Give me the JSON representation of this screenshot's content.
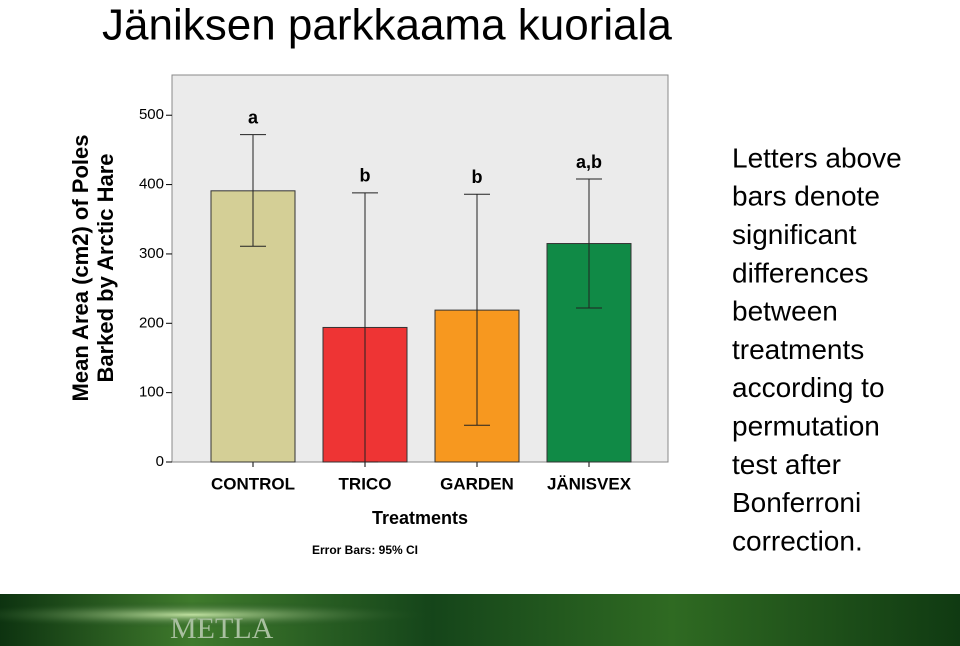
{
  "title": "Jäniksen parkkaama kuoriala",
  "chart_data": {
    "type": "bar",
    "y_label": [
      "Mean Area (cm2) of Poles",
      "Barked by Arctic Hare"
    ],
    "x_label": "Treatments",
    "footnote": "Error Bars: 95% CI",
    "categories": [
      "CONTROL",
      "TRICO",
      "GARDEN",
      "JÄNISVEX"
    ],
    "values": [
      391,
      194,
      219,
      315
    ],
    "error_low": [
      311,
      0,
      53,
      222
    ],
    "error_high": [
      472,
      388,
      386,
      408
    ],
    "annotations": [
      "a",
      "b",
      "b",
      "a,b"
    ],
    "colors": [
      "#d4cf96",
      "#ee3434",
      "#f7981f",
      "#108a46"
    ],
    "ylim": [
      0,
      558
    ],
    "yticks": [
      0,
      100,
      200,
      300,
      400,
      500
    ]
  },
  "note": [
    "Letters above",
    "bars denote",
    "significant",
    "differences",
    "between",
    "treatments",
    "according to",
    "permutation",
    "test after",
    "Bonferroni",
    "correction."
  ],
  "footer": {
    "logo": "METLA"
  }
}
